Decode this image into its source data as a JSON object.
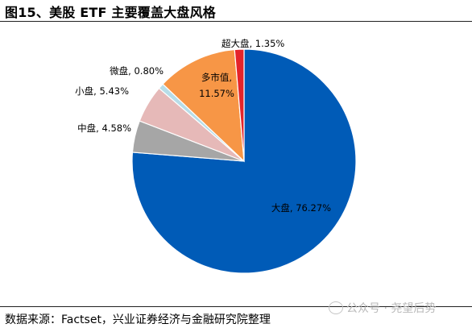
{
  "header": {
    "title": "图15、美股 ETF 主要覆盖大盘风格"
  },
  "footer": {
    "source": "数据来源：Factset，兴业证券经济与金融研究院整理"
  },
  "watermark": {
    "text": "公众号 · 尧望后势",
    "icon": "wechat-icon"
  },
  "chart_data": {
    "type": "pie",
    "title": "",
    "slices": [
      {
        "name": "大盘",
        "value": 76.27,
        "label": "大盘, 76.27%",
        "color": "#005BB7"
      },
      {
        "name": "中盘",
        "value": 4.58,
        "label": "中盘, 4.58%",
        "color": "#A6A6A6"
      },
      {
        "name": "小盘",
        "value": 5.43,
        "label": "小盘, 5.43%",
        "color": "#E6B9B8"
      },
      {
        "name": "微盘",
        "value": 0.8,
        "label": "微盘, 0.80%",
        "color": "#B7DDE8"
      },
      {
        "name": "多市值",
        "value": 11.57,
        "label_lines": [
          "多市值,",
          "11.57%"
        ],
        "color": "#F79646"
      },
      {
        "name": "超大盘",
        "value": 1.35,
        "label": "超大盘, 1.35%",
        "color": "#E5242A"
      }
    ]
  }
}
